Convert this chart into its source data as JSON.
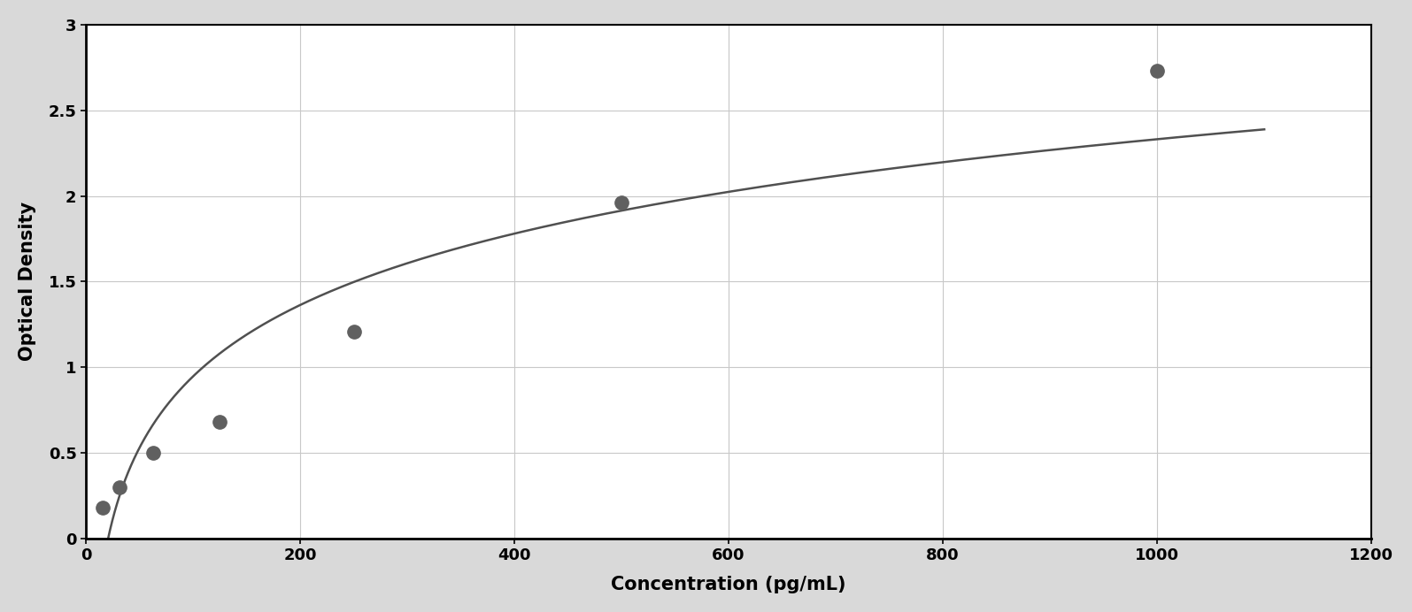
{
  "x_data": [
    15.6,
    31.2,
    62.5,
    125,
    250,
    500,
    1000
  ],
  "y_data": [
    0.18,
    0.3,
    0.5,
    0.68,
    1.21,
    1.96,
    2.73
  ],
  "xlabel": "Concentration (pg/mL)",
  "ylabel": "Optical Density",
  "xlim": [
    0,
    1200
  ],
  "ylim": [
    0,
    3
  ],
  "xticks": [
    0,
    200,
    400,
    600,
    800,
    1000,
    1200
  ],
  "yticks": [
    0,
    0.5,
    1.0,
    1.5,
    2.0,
    2.5,
    3.0
  ],
  "point_color": "#606060",
  "line_color": "#505050",
  "background_color": "#ffffff",
  "outer_background": "#d9d9d9",
  "grid_color": "#c8c8c8",
  "marker_size": 11,
  "line_width": 1.8,
  "xlabel_fontsize": 15,
  "ylabel_fontsize": 15,
  "tick_fontsize": 13,
  "border_color": "#000000",
  "four_pl_A": 0.15,
  "four_pl_B": 0.55,
  "four_pl_C": 180,
  "four_pl_D": 2.85
}
